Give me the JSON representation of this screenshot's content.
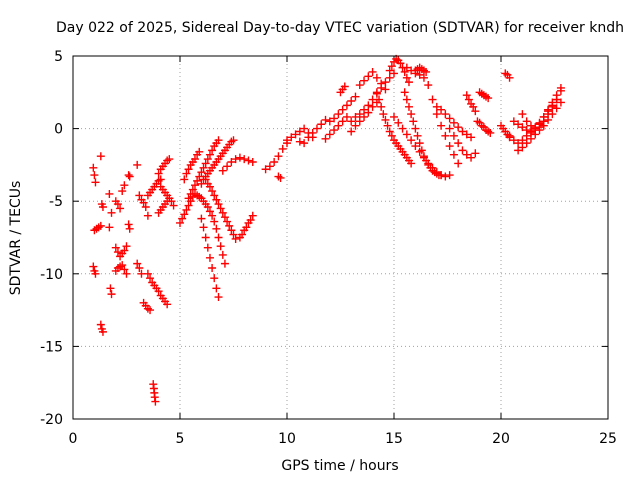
{
  "chart_data": {
    "type": "scatter",
    "title": "Day 022 of 2025, Sidereal Day-to-day VTEC variation (SDTVAR) for receiver kndh",
    "xlabel": "GPS time / hours",
    "ylabel": "SDTVAR / TECUs",
    "xlim": [
      0,
      25
    ],
    "ylim": [
      -20,
      5
    ],
    "xticks": [
      0,
      5,
      10,
      15,
      20,
      25
    ],
    "yticks": [
      -20,
      -15,
      -10,
      -5,
      0,
      5
    ],
    "grid": true,
    "marker": "+",
    "color": "#ff0000",
    "series": [
      {
        "name": "s01",
        "x": [
          0.95,
          1.0,
          1.05
        ],
        "y": [
          -2.7,
          -3.2,
          -3.7
        ]
      },
      {
        "name": "s02",
        "x": [
          0.95,
          1.0,
          1.05
        ],
        "y": [
          -9.5,
          -9.8,
          -10.0
        ]
      },
      {
        "name": "s03",
        "x": [
          1.0,
          1.1,
          1.2,
          1.3
        ],
        "y": [
          -7.0,
          -6.9,
          -6.8,
          -6.7
        ]
      },
      {
        "name": "s04",
        "x": [
          1.3,
          1.35,
          1.4
        ],
        "y": [
          -1.9,
          -5.2,
          -5.4
        ]
      },
      {
        "name": "s05",
        "x": [
          1.3,
          1.35,
          1.4
        ],
        "y": [
          -13.5,
          -13.8,
          -14.0
        ]
      },
      {
        "name": "s06",
        "x": [
          1.7,
          1.75,
          1.8
        ],
        "y": [
          -6.8,
          -11.0,
          -11.4
        ]
      },
      {
        "name": "s07",
        "x": [
          1.7,
          1.8
        ],
        "y": [
          -4.5,
          -5.8
        ]
      },
      {
        "name": "s08",
        "x": [
          2.0,
          2.1,
          2.2,
          2.3,
          2.4
        ],
        "y": [
          -5.0,
          -5.2,
          -5.5,
          -4.3,
          -3.9
        ]
      },
      {
        "name": "s09",
        "x": [
          2.0,
          2.1,
          2.2,
          2.3,
          2.4,
          2.5
        ],
        "y": [
          -8.2,
          -8.5,
          -8.8,
          -8.6,
          -8.4,
          -8.1
        ]
      },
      {
        "name": "s10",
        "x": [
          2.0,
          2.1,
          2.2,
          2.3,
          2.4,
          2.5
        ],
        "y": [
          -9.8,
          -9.6,
          -9.5,
          -9.4,
          -9.7,
          -10.0
        ]
      },
      {
        "name": "s11",
        "x": [
          2.6,
          2.65
        ],
        "y": [
          -6.6,
          -6.9
        ]
      },
      {
        "name": "s12",
        "x": [
          2.6,
          2.65
        ],
        "y": [
          -3.2,
          -3.3
        ]
      },
      {
        "name": "s13",
        "x": [
          3.0,
          3.1,
          3.2,
          3.3,
          3.4,
          3.5
        ],
        "y": [
          -2.5,
          -4.6,
          -4.9,
          -5.1,
          -5.4,
          -6.0
        ]
      },
      {
        "name": "s14",
        "x": [
          3.0,
          3.1,
          3.2,
          3.3,
          3.4,
          3.5,
          3.6
        ],
        "y": [
          -9.3,
          -9.6,
          -10.0,
          -12.0,
          -12.2,
          -12.4,
          -12.5
        ]
      },
      {
        "name": "s15",
        "x": [
          3.5,
          3.6,
          3.7,
          3.8,
          3.9,
          4.0,
          4.1,
          4.2,
          4.3,
          4.4
        ],
        "y": [
          -10.0,
          -10.3,
          -10.6,
          -10.8,
          -11.0,
          -11.2,
          -11.5,
          -11.7,
          -11.9,
          -12.1
        ]
      },
      {
        "name": "s16",
        "x": [
          3.5,
          3.6,
          3.7,
          3.8,
          3.9,
          4.0,
          4.1
        ],
        "y": [
          -4.6,
          -4.4,
          -4.2,
          -4.0,
          -3.8,
          -3.6,
          -3.5
        ]
      },
      {
        "name": "s17",
        "x": [
          3.75,
          3.78,
          3.8,
          3.82,
          3.85
        ],
        "y": [
          -17.6,
          -17.9,
          -18.2,
          -18.5,
          -18.8
        ]
      },
      {
        "name": "s18",
        "x": [
          4.0,
          4.1,
          4.2,
          4.3,
          4.4,
          4.5
        ],
        "y": [
          -5.8,
          -5.6,
          -5.4,
          -5.2,
          -5.0,
          -4.8
        ]
      },
      {
        "name": "s19",
        "x": [
          4.0,
          4.1,
          4.2,
          4.3,
          4.4,
          4.5
        ],
        "y": [
          -3.1,
          -2.8,
          -2.6,
          -2.4,
          -2.2,
          -2.1
        ]
      },
      {
        "name": "s20",
        "x": [
          4.1,
          4.2,
          4.3,
          4.4,
          4.5,
          4.6,
          4.7
        ],
        "y": [
          -4.0,
          -4.2,
          -4.4,
          -4.6,
          -4.8,
          -5.0,
          -5.3
        ]
      },
      {
        "name": "s21",
        "x": [
          5.0,
          5.1,
          5.2,
          5.3,
          5.4,
          5.5,
          5.6
        ],
        "y": [
          -6.5,
          -6.2,
          -5.9,
          -5.6,
          -5.3,
          -5.0,
          -4.7
        ]
      },
      {
        "name": "s22",
        "x": [
          5.2,
          5.3,
          5.4,
          5.5,
          5.6,
          5.7,
          5.8,
          5.9
        ],
        "y": [
          -3.5,
          -3.1,
          -2.8,
          -2.5,
          -2.3,
          -2.1,
          -1.8,
          -1.6
        ]
      },
      {
        "name": "s23",
        "x": [
          5.4,
          5.5,
          5.6,
          5.7,
          5.8,
          5.9,
          6.0,
          6.1,
          6.2,
          6.3,
          6.4,
          6.5,
          6.6,
          6.7,
          6.8
        ],
        "y": [
          -4.8,
          -4.5,
          -4.2,
          -3.9,
          -3.6,
          -3.3,
          -3.0,
          -2.7,
          -2.4,
          -2.1,
          -1.8,
          -1.5,
          -1.2,
          -1.0,
          -0.8
        ]
      },
      {
        "name": "s24",
        "x": [
          6.0,
          6.1,
          6.2,
          6.3,
          6.4,
          6.5,
          6.6,
          6.7,
          6.8,
          6.9,
          7.0,
          7.1,
          7.2,
          7.3,
          7.4,
          7.5
        ],
        "y": [
          -3.8,
          -3.5,
          -3.3,
          -3.1,
          -2.9,
          -2.7,
          -2.5,
          -2.3,
          -2.1,
          -1.9,
          -1.7,
          -1.5,
          -1.3,
          -1.1,
          -0.9,
          -0.8
        ]
      },
      {
        "name": "s25",
        "x": [
          5.7,
          5.8,
          5.9,
          6.0,
          6.1,
          6.2,
          6.3,
          6.4,
          6.5,
          6.6,
          6.7,
          6.8,
          6.9,
          7.0,
          7.1
        ],
        "y": [
          -4.5,
          -4.6,
          -4.7,
          -4.8,
          -5.0,
          -5.2,
          -5.4,
          -5.7,
          -6.0,
          -6.4,
          -6.9,
          -7.5,
          -8.1,
          -8.7,
          -9.3
        ]
      },
      {
        "name": "s26",
        "x": [
          6.0,
          6.1,
          6.2,
          6.3,
          6.4,
          6.5,
          6.6,
          6.7,
          6.8
        ],
        "y": [
          -6.2,
          -6.8,
          -7.5,
          -8.2,
          -8.9,
          -9.6,
          -10.3,
          -11.0,
          -11.6
        ]
      },
      {
        "name": "s27",
        "x": [
          6.2,
          6.3,
          6.4,
          6.5,
          6.6,
          6.7,
          6.8,
          6.9,
          7.0,
          7.1,
          7.2,
          7.3,
          7.4,
          7.5,
          7.6
        ],
        "y": [
          -3.5,
          -3.8,
          -4.0,
          -4.3,
          -4.6,
          -4.9,
          -5.2,
          -5.5,
          -5.8,
          -6.1,
          -6.4,
          -6.7,
          -7.0,
          -7.3,
          -7.6
        ]
      },
      {
        "name": "s28",
        "x": [
          7.0,
          7.2,
          7.4,
          7.6,
          7.8,
          8.0,
          8.2,
          8.4
        ],
        "y": [
          -2.9,
          -2.6,
          -2.3,
          -2.1,
          -2.0,
          -2.1,
          -2.2,
          -2.3
        ]
      },
      {
        "name": "s29",
        "x": [
          7.8,
          7.9,
          8.0,
          8.1,
          8.2,
          8.3,
          8.4
        ],
        "y": [
          -7.5,
          -7.3,
          -7.0,
          -6.8,
          -6.5,
          -6.3,
          -6.0
        ]
      },
      {
        "name": "s30",
        "x": [
          9.0,
          9.2,
          9.4,
          9.6,
          9.8,
          10.0
        ],
        "y": [
          -2.8,
          -2.6,
          -2.3,
          -1.9,
          -1.4,
          -1.0
        ]
      },
      {
        "name": "s31",
        "x": [
          9.6,
          9.7
        ],
        "y": [
          -3.3,
          -3.4
        ]
      },
      {
        "name": "s32",
        "x": [
          10.0,
          10.2,
          10.4,
          10.6,
          10.8,
          11.0,
          11.2
        ],
        "y": [
          -0.8,
          -0.6,
          -0.4,
          -0.2,
          0.0,
          -0.3,
          -0.6
        ]
      },
      {
        "name": "s33",
        "x": [
          10.6,
          10.8,
          11.0,
          11.2,
          11.4,
          11.6,
          11.8
        ],
        "y": [
          -0.9,
          -1.0,
          -0.6,
          -0.3,
          0.0,
          0.3,
          0.6
        ]
      },
      {
        "name": "s34",
        "x": [
          11.8,
          12.0,
          12.2,
          12.4,
          12.6,
          12.8
        ],
        "y": [
          -0.7,
          -0.4,
          -0.1,
          0.2,
          0.5,
          0.8
        ]
      },
      {
        "name": "s35",
        "x": [
          12.0,
          12.2,
          12.4,
          12.6,
          12.8,
          13.0,
          13.2
        ],
        "y": [
          0.5,
          0.7,
          1.0,
          1.3,
          1.6,
          1.9,
          2.2
        ]
      },
      {
        "name": "s36",
        "x": [
          12.5,
          12.6,
          12.7
        ],
        "y": [
          2.5,
          2.7,
          2.9
        ]
      },
      {
        "name": "s37",
        "x": [
          13.0,
          13.2,
          13.4,
          13.6,
          13.8,
          14.0,
          14.2
        ],
        "y": [
          -0.2,
          0.2,
          0.5,
          0.8,
          1.1,
          1.5,
          1.8
        ]
      },
      {
        "name": "s38",
        "x": [
          13.4,
          13.6,
          13.8,
          14.0,
          14.2,
          14.4,
          14.6
        ],
        "y": [
          3.0,
          3.3,
          3.6,
          3.9,
          3.5,
          3.1,
          2.7
        ]
      },
      {
        "name": "s39",
        "x": [
          13.0,
          13.2,
          13.4,
          13.6,
          13.8,
          14.0,
          14.2,
          14.4,
          14.6,
          14.8,
          15.0
        ],
        "y": [
          0.5,
          0.8,
          1.0,
          1.3,
          1.6,
          2.0,
          2.4,
          2.8,
          3.2,
          3.5,
          3.8
        ]
      },
      {
        "name": "s40",
        "x": [
          14.2,
          14.3,
          14.4,
          14.5,
          14.6,
          14.7,
          14.8,
          14.9,
          15.0,
          15.1,
          15.2,
          15.3,
          15.4,
          15.5,
          15.6,
          15.7,
          15.8
        ],
        "y": [
          2.5,
          2.0,
          1.5,
          1.0,
          0.6,
          0.2,
          -0.2,
          -0.5,
          -0.8,
          -1.0,
          -1.2,
          -1.4,
          -1.6,
          -1.8,
          -2.0,
          -2.2,
          -2.4
        ]
      },
      {
        "name": "s41",
        "x": [
          14.8,
          14.9,
          15.0,
          15.1,
          15.2,
          15.3,
          15.4,
          15.5,
          15.6,
          15.7
        ],
        "y": [
          4.0,
          4.3,
          4.6,
          4.8,
          4.7,
          4.5,
          4.2,
          3.9,
          3.5,
          3.2
        ]
      },
      {
        "name": "s42",
        "x": [
          15.5,
          15.6,
          15.7,
          15.8,
          15.9,
          16.0,
          16.1,
          16.2,
          16.3,
          16.4,
          16.5,
          16.6,
          16.7,
          16.8,
          16.9,
          17.0,
          17.1,
          17.2
        ],
        "y": [
          2.5,
          2.0,
          1.5,
          1.0,
          0.5,
          0.0,
          -0.5,
          -1.0,
          -1.5,
          -1.9,
          -2.2,
          -2.5,
          -2.7,
          -2.9,
          -3.0,
          -3.1,
          -3.2,
          -3.2
        ]
      },
      {
        "name": "s43",
        "x": [
          15.6,
          15.8,
          16.0,
          16.2,
          16.4,
          16.6,
          16.8,
          17.0,
          17.2,
          17.4,
          17.6,
          17.8,
          18.0
        ],
        "y": [
          4.2,
          4.0,
          3.8,
          3.7,
          3.5,
          3.0,
          2.0,
          1.0,
          0.2,
          -0.5,
          -1.2,
          -1.8,
          -2.4
        ]
      },
      {
        "name": "s44",
        "x": [
          16.0,
          16.1,
          16.2,
          16.3,
          16.4,
          16.5
        ],
        "y": [
          4.0,
          4.1,
          4.2,
          4.1,
          4.0,
          3.9
        ]
      },
      {
        "name": "s45",
        "x": [
          15.0,
          15.2,
          15.4,
          15.6,
          15.8,
          16.0,
          16.2,
          16.4,
          16.6,
          16.8,
          17.0,
          17.2,
          17.4,
          17.6
        ],
        "y": [
          0.8,
          0.4,
          0.0,
          -0.4,
          -0.8,
          -1.2,
          -1.6,
          -2.0,
          -2.4,
          -2.7,
          -3.0,
          -3.2,
          -3.3,
          -3.2
        ]
      },
      {
        "name": "s46",
        "x": [
          17.0,
          17.2,
          17.4,
          17.6,
          17.8,
          18.0,
          18.2,
          18.4,
          18.6
        ],
        "y": [
          1.5,
          1.3,
          1.0,
          0.7,
          0.4,
          0.1,
          -0.2,
          -0.4,
          -0.6
        ]
      },
      {
        "name": "s47",
        "x": [
          17.6,
          17.8,
          18.0,
          18.2,
          18.4,
          18.6,
          18.8
        ],
        "y": [
          0.0,
          -0.5,
          -1.0,
          -1.5,
          -1.8,
          -2.0,
          -1.7
        ]
      },
      {
        "name": "s48",
        "x": [
          18.4,
          18.5,
          18.6,
          18.7,
          18.8
        ],
        "y": [
          2.3,
          2.0,
          1.7,
          1.5,
          1.2
        ]
      },
      {
        "name": "s49",
        "x": [
          18.9,
          19.0,
          19.1,
          19.2,
          19.3,
          19.4,
          19.5
        ],
        "y": [
          0.5,
          0.4,
          0.2,
          0.1,
          -0.1,
          -0.2,
          -0.3
        ]
      },
      {
        "name": "s50",
        "x": [
          19.0,
          19.1,
          19.2,
          19.3,
          19.4
        ],
        "y": [
          2.5,
          2.4,
          2.3,
          2.2,
          2.1
        ]
      },
      {
        "name": "s51",
        "x": [
          20.0,
          20.1,
          20.2,
          20.3,
          20.4
        ],
        "y": [
          0.2,
          0.0,
          -0.2,
          -0.4,
          -0.6
        ]
      },
      {
        "name": "s52",
        "x": [
          20.2,
          20.3,
          20.4
        ],
        "y": [
          3.8,
          3.7,
          3.5
        ]
      },
      {
        "name": "s53",
        "x": [
          20.4,
          20.6,
          20.8,
          21.0,
          21.2,
          21.4,
          21.6,
          21.8,
          22.0,
          22.2,
          22.4,
          22.6
        ],
        "y": [
          -0.5,
          -0.8,
          -1.0,
          -0.8,
          -0.5,
          -0.2,
          0.1,
          0.4,
          0.8,
          1.2,
          1.6,
          2.0
        ]
      },
      {
        "name": "s54",
        "x": [
          20.6,
          20.8,
          21.0,
          21.2,
          21.4,
          21.6,
          21.8,
          22.0,
          22.2,
          22.4,
          22.6,
          22.8
        ],
        "y": [
          0.5,
          0.3,
          0.1,
          -0.1,
          -0.3,
          -0.1,
          0.3,
          0.8,
          1.3,
          1.8,
          2.3,
          2.8
        ]
      },
      {
        "name": "s55",
        "x": [
          20.8,
          21.0,
          21.2,
          21.4,
          21.6,
          21.8,
          22.0,
          22.2,
          22.4,
          22.6,
          22.8
        ],
        "y": [
          -1.5,
          -1.3,
          -1.0,
          -0.7,
          -0.4,
          -0.1,
          0.2,
          0.6,
          1.0,
          1.4,
          1.8
        ]
      },
      {
        "name": "s56",
        "x": [
          21.0,
          21.2,
          21.4,
          21.6,
          21.8,
          22.0,
          22.2,
          22.4,
          22.6,
          22.8
        ],
        "y": [
          1.0,
          0.5,
          0.2,
          0.0,
          0.1,
          0.5,
          1.0,
          1.5,
          2.0,
          2.6
        ]
      }
    ]
  }
}
